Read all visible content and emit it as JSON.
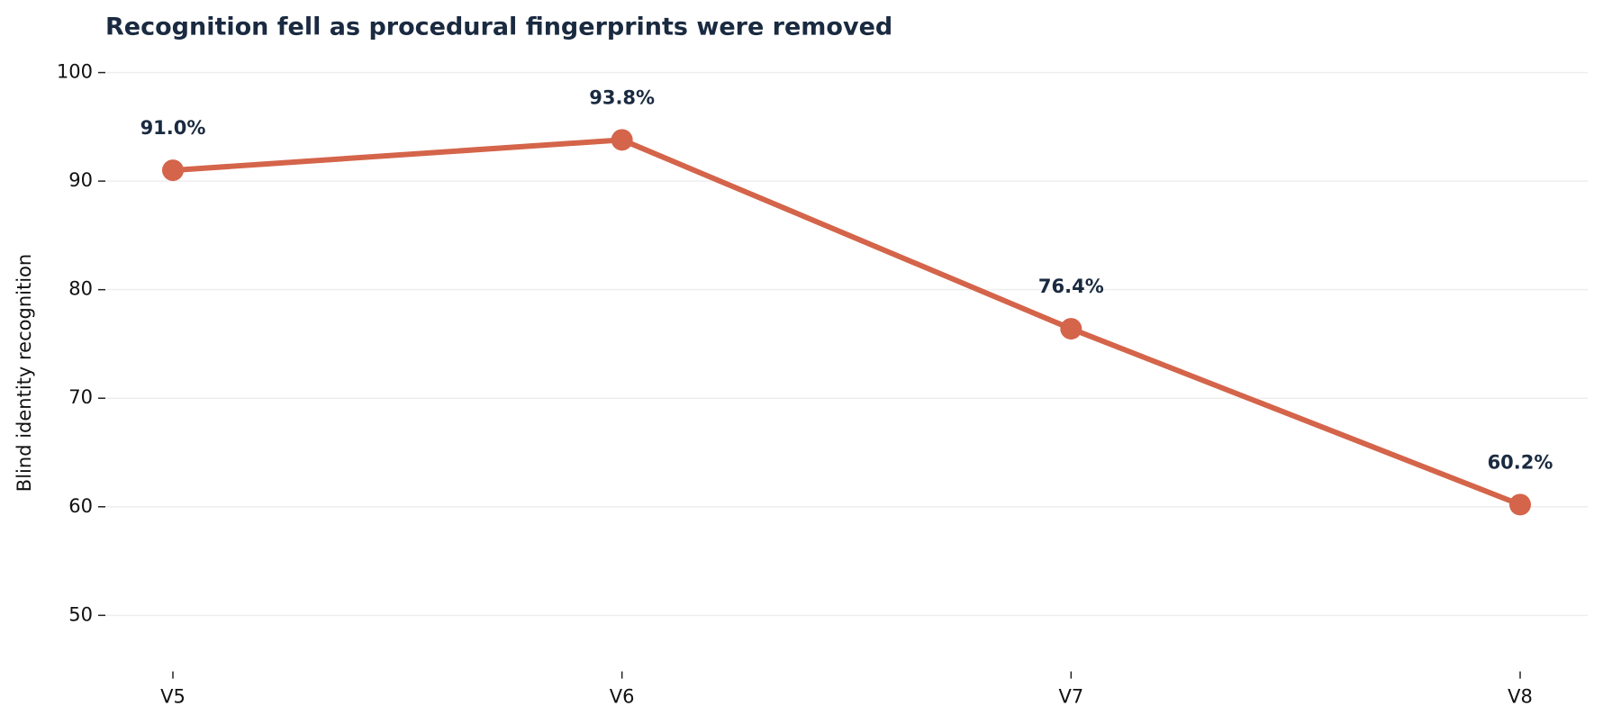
{
  "chart_data": {
    "type": "line",
    "title": "Recognition fell as procedural fingerprints were removed",
    "y_label": "Blind identity recognition",
    "categories": [
      "V5",
      "V6",
      "V7",
      "V8"
    ],
    "series": [
      {
        "name": "Blind identity recognition",
        "color": "#d4644a",
        "values": [
          91.0,
          93.8,
          76.4,
          60.2
        ],
        "value_labels": [
          "91.0%",
          "93.8%",
          "76.4%",
          "60.2%"
        ]
      }
    ],
    "ylim": [
      45,
      101.5
    ],
    "yticks": [
      50,
      60,
      70,
      80,
      90,
      100
    ],
    "grid": true
  }
}
